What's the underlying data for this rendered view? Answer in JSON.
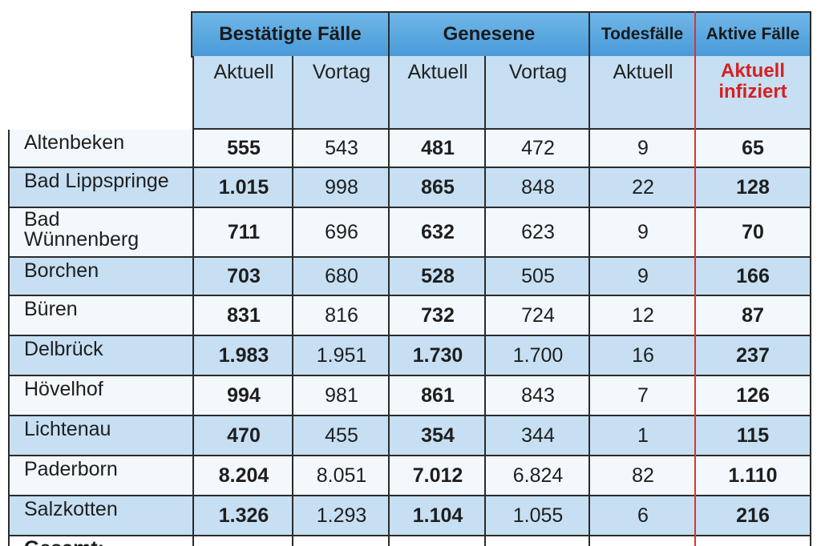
{
  "headers": {
    "group1": "Bestätigte Fälle",
    "group2": "Genesene",
    "group3": "Todesfälle",
    "group4": "Aktive Fälle",
    "sub": [
      "Aktuell",
      "Vortag",
      "Aktuell",
      "Vortag",
      "Aktuell"
    ],
    "sub_active_line1": "Aktuell",
    "sub_active_line2": "infiziert",
    "accent_red": "#d62020"
  },
  "rows": [
    {
      "name": "Altenbeken",
      "name2": "",
      "v": [
        "555",
        "543",
        "481",
        "472",
        "9",
        "65"
      ]
    },
    {
      "name": "Bad Lippspringe",
      "name2": "",
      "v": [
        "1.015",
        "998",
        "865",
        "848",
        "22",
        "128"
      ]
    },
    {
      "name": "Bad",
      "name2": "Wünnenberg",
      "v": [
        "711",
        "696",
        "632",
        "623",
        "9",
        "70"
      ]
    },
    {
      "name": "Borchen",
      "name2": "",
      "v": [
        "703",
        "680",
        "528",
        "505",
        "9",
        "166"
      ]
    },
    {
      "name": "Büren",
      "name2": "",
      "v": [
        "831",
        "816",
        "732",
        "724",
        "12",
        "87"
      ]
    },
    {
      "name": "Delbrück",
      "name2": "",
      "v": [
        "1.983",
        "1.951",
        "1.730",
        "1.700",
        "16",
        "237"
      ]
    },
    {
      "name": "Hövelhof",
      "name2": "",
      "v": [
        "994",
        "981",
        "861",
        "843",
        "7",
        "126"
      ]
    },
    {
      "name": "Lichtenau",
      "name2": "",
      "v": [
        "470",
        "455",
        "354",
        "344",
        "1",
        "115"
      ]
    },
    {
      "name": "Paderborn",
      "name2": "",
      "v": [
        "8.204",
        "8.051",
        "7.012",
        "6.824",
        "82",
        "1.110"
      ]
    },
    {
      "name": "Salzkotten",
      "name2": "",
      "v": [
        "1.326",
        "1.293",
        "1.104",
        "1.055",
        "6",
        "216"
      ]
    }
  ],
  "footer_partial": "Gesamt:"
}
